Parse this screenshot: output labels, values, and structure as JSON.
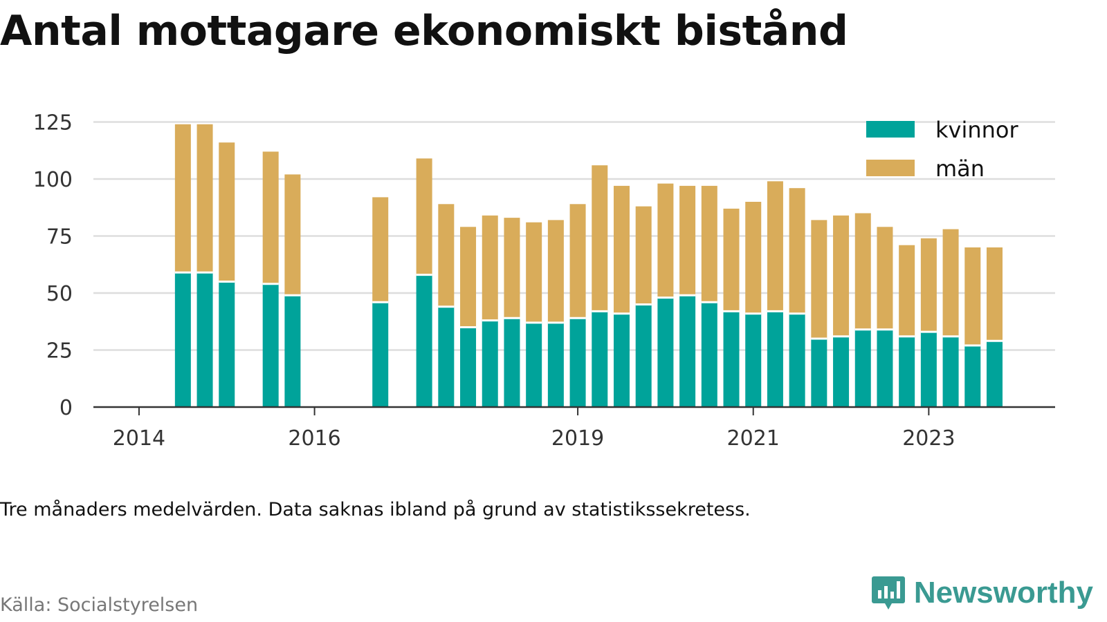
{
  "title": "Antal mottagare ekonomiskt bistånd",
  "note": "Tre månaders medelvärden. Data saknas ibland på grund av statistikssekretess.",
  "source": "Källa: Socialstyrelsen",
  "brand": "Newsworthy",
  "colors": {
    "kvinnor": "#00a39a",
    "man": "#d9ac5a",
    "grid": "#dddddd",
    "axis": "#333333"
  },
  "chart_data": {
    "type": "bar",
    "stacked": true,
    "x_ticks": [
      {
        "label": "2014",
        "t": 2014.0
      },
      {
        "label": "2016",
        "t": 2016.0
      },
      {
        "label": "2019",
        "t": 2019.0
      },
      {
        "label": "2021",
        "t": 2021.0
      },
      {
        "label": "2023",
        "t": 2023.0
      }
    ],
    "y_ticks": [
      0,
      25,
      50,
      75,
      100,
      125
    ],
    "ylim": [
      0,
      130
    ],
    "xlim": [
      2013.48,
      2024.44
    ],
    "periods": [
      2014.5,
      2014.75,
      2015.0,
      2015.5,
      2015.75,
      2016.75,
      2017.25,
      2017.5,
      2017.75,
      2018.0,
      2018.25,
      2018.5,
      2018.75,
      2019.0,
      2019.25,
      2019.5,
      2019.75,
      2020.0,
      2020.25,
      2020.5,
      2020.75,
      2021.0,
      2021.25,
      2021.5,
      2021.75,
      2022.0,
      2022.25,
      2022.5,
      2022.75,
      2023.0,
      2023.25,
      2023.5,
      2023.75
    ],
    "series": [
      {
        "name": "kvinnor",
        "values": [
          59,
          59,
          55,
          54,
          49,
          46,
          58,
          44,
          35,
          38,
          39,
          37,
          37,
          39,
          42,
          41,
          45,
          48,
          49,
          46,
          42,
          41,
          42,
          41,
          30,
          31,
          34,
          34,
          31,
          33,
          31,
          27,
          29
        ]
      },
      {
        "name": "män",
        "values": [
          65,
          65,
          61,
          58,
          53,
          46,
          51,
          45,
          44,
          46,
          44,
          44,
          45,
          50,
          64,
          56,
          43,
          50,
          48,
          51,
          45,
          49,
          57,
          55,
          52,
          53,
          51,
          45,
          40,
          41,
          47,
          43,
          41
        ]
      }
    ],
    "legend": {
      "position": "top-right",
      "labels": [
        "kvinnor",
        "män"
      ]
    }
  }
}
